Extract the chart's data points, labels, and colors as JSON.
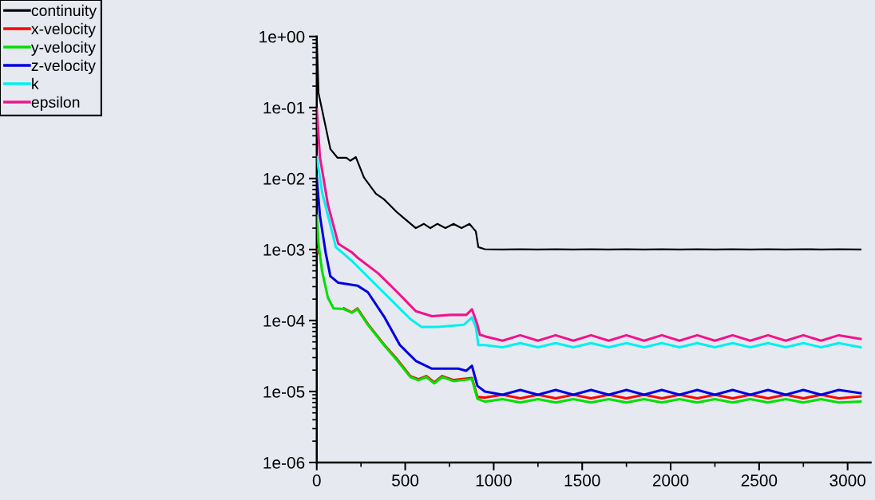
{
  "chart_data": {
    "type": "line",
    "log": "y",
    "legend": "top left",
    "grid": false,
    "marker": "none",
    "line_style": "solid",
    "xlim": [
      0,
      3130
    ],
    "ylim": [
      1e-06,
      1
    ],
    "xticks": [
      0,
      {
        "value": 250,
        "label": null
      },
      500,
      {
        "value": 750,
        "label": null
      },
      1000,
      {
        "value": 1250,
        "label": null
      },
      1500,
      {
        "value": 1750,
        "label": null
      },
      2000,
      {
        "value": 2250,
        "label": null
      },
      2500,
      {
        "value": 2750,
        "label": null
      },
      3000
    ],
    "yticks": [
      {
        "value": 1e-06,
        "label": "1e-06"
      },
      {
        "value": 1e-05,
        "label": "1e-05"
      },
      {
        "value": 0.0001,
        "label": "1e-04"
      },
      {
        "value": 0.001,
        "label": "1e-03"
      },
      {
        "value": 0.01,
        "label": "1e-02"
      },
      {
        "value": 0.1,
        "label": "1e-01"
      },
      {
        "value": 1,
        "label": "1e+00"
      }
    ],
    "series": [
      {
        "name": "continuity",
        "color": "#000000",
        "x": [
          0,
          10,
          77,
          117,
          168,
          190,
          221,
          267,
          334,
          380,
          456,
          560,
          605,
          642,
          682,
          727,
          773,
          818,
          863,
          899,
          913,
          950,
          1050,
          1150,
          1250,
          1350,
          1450,
          1550,
          1650,
          1750,
          1850,
          1950,
          2050,
          2150,
          2250,
          2350,
          2450,
          2550,
          2650,
          2750,
          2850,
          2950,
          3073
        ],
        "values": [
          1.0,
          0.16,
          0.026,
          0.0196,
          0.0196,
          0.0178,
          0.02,
          0.0103,
          0.0061,
          0.0051,
          0.0033,
          0.002,
          0.0023,
          0.002,
          0.0023,
          0.002,
          0.0023,
          0.002,
          0.0023,
          0.0018,
          0.00108,
          0.00101,
          0.001,
          0.00101,
          0.001,
          0.00101,
          0.001,
          0.00101,
          0.001,
          0.00101,
          0.001,
          0.00101,
          0.001,
          0.00101,
          0.001,
          0.00101,
          0.001,
          0.00101,
          0.001,
          0.00101,
          0.001,
          0.00101,
          0.001
        ]
      },
      {
        "name": "x-velocity",
        "color": "#ff0000",
        "x": [
          0,
          10,
          30,
          63,
          95,
          154,
          199,
          230,
          289,
          380,
          456,
          529,
          574,
          619,
          664,
          709,
          773,
          877,
          908,
          950,
          1050,
          1150,
          1250,
          1350,
          1450,
          1550,
          1650,
          1750,
          1850,
          1950,
          2050,
          2150,
          2250,
          2350,
          2450,
          2550,
          2650,
          2750,
          2850,
          2950,
          3073
        ],
        "values": [
          0.001,
          0.0009,
          null,
          null,
          null,
          0.000148,
          0.00013,
          0.000148,
          8.9e-05,
          4.6e-05,
          2.8e-05,
          1.65e-05,
          1.48e-05,
          1.65e-05,
          1.35e-05,
          1.65e-05,
          1.45e-05,
          1.55e-05,
          8.4e-06,
          8.2e-06,
          9e-06,
          8e-06,
          9e-06,
          8e-06,
          9e-06,
          8e-06,
          9e-06,
          8e-06,
          9e-06,
          8e-06,
          9e-06,
          8e-06,
          9e-06,
          8e-06,
          9e-06,
          8e-06,
          9e-06,
          8e-06,
          9e-06,
          8e-06,
          8.5e-06
        ]
      },
      {
        "name": "y-velocity",
        "color": "#00e000",
        "x": [
          0,
          10,
          30,
          63,
          95,
          154,
          199,
          230,
          289,
          380,
          456,
          529,
          574,
          619,
          664,
          709,
          773,
          877,
          908,
          950,
          1050,
          1150,
          1250,
          1350,
          1450,
          1550,
          1650,
          1750,
          1850,
          1950,
          2050,
          2150,
          2250,
          2350,
          2450,
          2550,
          2650,
          2750,
          2850,
          2950,
          3073
        ],
        "values": [
          0.003,
          0.0012,
          0.0005,
          0.00021,
          0.000148,
          0.000145,
          0.000129,
          0.000145,
          8.7e-05,
          4.5e-05,
          2.7e-05,
          1.6e-05,
          1.44e-05,
          1.6e-05,
          1.3e-05,
          1.6e-05,
          1.4e-05,
          1.5e-05,
          7.9e-06,
          7.2e-06,
          7.8e-06,
          7e-06,
          7.8e-06,
          7e-06,
          7.8e-06,
          7e-06,
          7.8e-06,
          7e-06,
          7.8e-06,
          7e-06,
          7.8e-06,
          7e-06,
          7.8e-06,
          7e-06,
          7.8e-06,
          7e-06,
          7.8e-06,
          7e-06,
          7.8e-06,
          7e-06,
          7.2e-06
        ]
      },
      {
        "name": "z-velocity",
        "color": "#0000e0",
        "x": [
          0,
          18,
          50,
          77,
          122,
          230,
          289,
          380,
          470,
          560,
          651,
          755,
          800,
          845,
          877,
          908,
          950,
          1050,
          1150,
          1250,
          1350,
          1450,
          1550,
          1650,
          1750,
          1850,
          1950,
          2050,
          2150,
          2250,
          2350,
          2450,
          2550,
          2650,
          2750,
          2850,
          2950,
          3073
        ],
        "values": [
          0.0102,
          0.003,
          0.00091,
          0.00042,
          0.00034,
          0.00031,
          0.00025,
          0.000114,
          4.5e-05,
          2.7e-05,
          2.1e-05,
          2.1e-05,
          2.1e-05,
          1.96e-05,
          2.3e-05,
          1.2e-05,
          1e-05,
          9e-06,
          1.05e-05,
          9e-06,
          1.05e-05,
          9e-06,
          1.05e-05,
          9e-06,
          1.05e-05,
          9e-06,
          1.05e-05,
          9e-06,
          1.05e-05,
          9e-06,
          1.05e-05,
          9e-06,
          1.05e-05,
          9e-06,
          1.05e-05,
          9e-06,
          1.05e-05,
          9.5e-06
        ]
      },
      {
        "name": "k",
        "color": "#00f0f0",
        "x": [
          0,
          32,
          77,
          108,
          199,
          303,
          425,
          529,
          592,
          682,
          831,
          877,
          899,
          913,
          950,
          1050,
          1150,
          1250,
          1350,
          1450,
          1550,
          1650,
          1750,
          1850,
          1950,
          2050,
          2150,
          2250,
          2350,
          2450,
          2550,
          2650,
          2750,
          2850,
          2950,
          3073
        ],
        "values": [
          0.02,
          0.0061,
          0.0022,
          0.00108,
          0.00069,
          0.00038,
          0.00019,
          0.000105,
          8.1e-05,
          8.1e-05,
          8.7e-05,
          0.00011,
          8.1e-05,
          4.5e-05,
          4.5e-05,
          4.2e-05,
          4.8e-05,
          4.2e-05,
          4.8e-05,
          4.2e-05,
          4.8e-05,
          4.2e-05,
          4.8e-05,
          4.2e-05,
          4.8e-05,
          4.2e-05,
          4.8e-05,
          4.2e-05,
          4.8e-05,
          4.2e-05,
          4.8e-05,
          4.2e-05,
          4.8e-05,
          4.2e-05,
          4.8e-05,
          4.2e-05
        ]
      },
      {
        "name": "epsilon",
        "color": "#f0148c",
        "x": [
          0,
          18,
          63,
          122,
          199,
          230,
          348,
          456,
          560,
          651,
          755,
          845,
          877,
          908,
          922,
          950,
          1050,
          1150,
          1250,
          1350,
          1450,
          1550,
          1650,
          1750,
          1850,
          1950,
          2050,
          2150,
          2250,
          2350,
          2450,
          2550,
          2650,
          2750,
          2850,
          2950,
          3073
        ],
        "values": [
          0.095,
          0.02,
          0.0043,
          0.0012,
          0.00091,
          0.00077,
          0.00046,
          0.00025,
          0.000135,
          0.000115,
          0.00012,
          0.00012,
          0.000144,
          8.7e-05,
          6.3e-05,
          6e-05,
          5.2e-05,
          6.2e-05,
          5.2e-05,
          6.2e-05,
          5.2e-05,
          6.2e-05,
          5.2e-05,
          6.2e-05,
          5.2e-05,
          6.2e-05,
          5.2e-05,
          6.2e-05,
          5.2e-05,
          6.2e-05,
          5.2e-05,
          6.2e-05,
          5.2e-05,
          6.2e-05,
          5.2e-05,
          6.2e-05,
          5.5e-05
        ]
      }
    ]
  }
}
